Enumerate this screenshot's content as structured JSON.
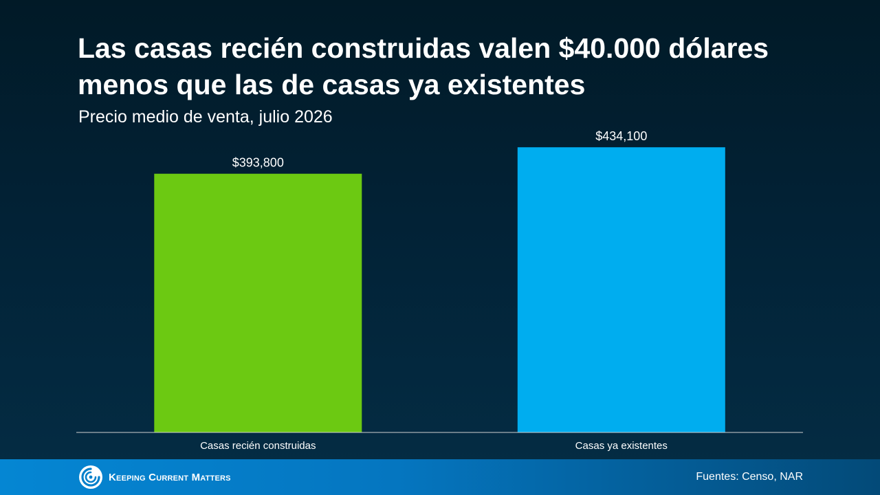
{
  "title": "Las casas recién construidas valen $40.000 dólares menos que las de casas ya existentes",
  "subtitle": "Precio medio de venta, julio 2026",
  "chart_data": {
    "type": "bar",
    "categories": [
      "Casas recién construidas",
      "Casas ya existentes"
    ],
    "values": [
      393800,
      434100
    ],
    "data_labels": [
      "$393,800",
      "$434,100"
    ],
    "colors": [
      "#6cc912",
      "#00adef"
    ],
    "ylim": [
      0,
      450000
    ],
    "grid": false,
    "legend": "none"
  },
  "footer": {
    "brand": "Keeping Current Matters",
    "source": "Fuentes: Censo, NAR"
  },
  "colors": {
    "background": "#021f31",
    "footer": "#0580cb",
    "axis": "#d0d0d0"
  }
}
